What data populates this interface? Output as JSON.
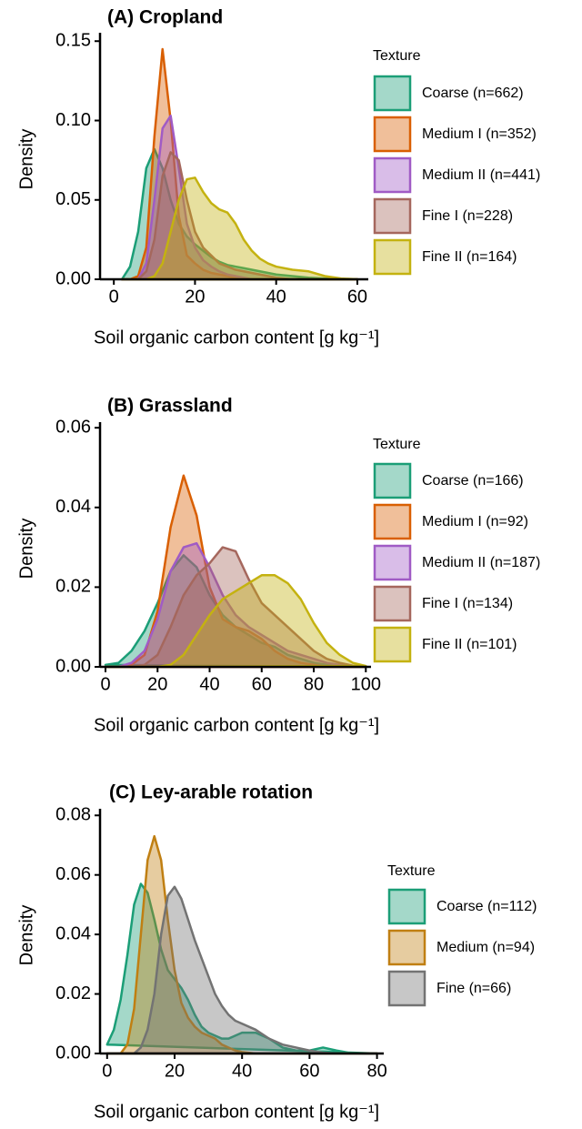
{
  "chart_data": [
    {
      "type": "density",
      "title": "(A) Cropland",
      "x_label": "Soil organic carbon content [g kg⁻¹]",
      "y_label": "Density",
      "legend_title": "Texture",
      "xlim": [
        -3.4,
        62.7
      ],
      "ylim": [
        0,
        0.153
      ],
      "xticks": [
        0,
        20,
        40,
        60
      ],
      "yticks": [
        {
          "value": 0,
          "label": "0.00"
        },
        0.05,
        {
          "value": 0.1,
          "label": "0.10"
        },
        0.15
      ],
      "x": [
        2,
        4,
        6,
        8,
        10,
        12,
        14,
        16,
        18,
        20,
        22,
        24,
        26,
        28,
        30,
        32,
        34,
        36,
        38,
        40,
        44,
        48,
        52,
        56,
        60
      ],
      "series": [
        {
          "name": "Coarse (n=662)",
          "color": "#1b9e77",
          "values": [
            0,
            0.008,
            0.03,
            0.07,
            0.082,
            0.07,
            0.05,
            0.035,
            0.027,
            0.022,
            0.018,
            0.014,
            0.011,
            0.009,
            0.008,
            0.007,
            0.006,
            0.005,
            0.004,
            0.003,
            0.002,
            0.001,
            0.0005,
            0.0002,
            0
          ]
        },
        {
          "name": "Medium I (n=352)",
          "color": "#d95f02",
          "values": [
            0,
            0,
            0.002,
            0.02,
            0.09,
            0.145,
            0.1,
            0.04,
            0.015,
            0.01,
            0.006,
            0.004,
            0.003,
            0.002,
            0.001,
            0,
            0,
            0,
            0,
            0,
            0,
            0,
            0,
            0,
            0
          ]
        },
        {
          "name": "Medium II (n=441)",
          "color": "#a05bc5",
          "values": [
            0,
            0,
            0,
            0.01,
            0.05,
            0.095,
            0.103,
            0.07,
            0.035,
            0.02,
            0.012,
            0.008,
            0.005,
            0.003,
            0.002,
            0.001,
            0,
            0,
            0,
            0,
            0,
            0,
            0,
            0,
            0
          ]
        },
        {
          "name": "Fine I (n=228)",
          "color": "#a5675d",
          "values": [
            0,
            0,
            0,
            0.005,
            0.025,
            0.065,
            0.08,
            0.075,
            0.05,
            0.03,
            0.02,
            0.015,
            0.01,
            0.008,
            0.006,
            0.005,
            0.004,
            0.003,
            0.002,
            0.001,
            0,
            0,
            0,
            0,
            0
          ]
        },
        {
          "name": "Fine II (n=164)",
          "color": "#c4b210",
          "values": [
            0,
            0,
            0,
            0,
            0.002,
            0.01,
            0.03,
            0.05,
            0.063,
            0.064,
            0.055,
            0.048,
            0.044,
            0.042,
            0.035,
            0.025,
            0.018,
            0.013,
            0.01,
            0.008,
            0.006,
            0.005,
            0.002,
            0.0005,
            0
          ]
        }
      ]
    },
    {
      "type": "density",
      "title": "(B) Grassland",
      "x_label": "Soil organic carbon content [g kg⁻¹]",
      "y_label": "Density",
      "legend_title": "Texture",
      "xlim": [
        -2.1,
        102
      ],
      "ylim": [
        0,
        0.0605
      ],
      "xticks": [
        0,
        20,
        40,
        60,
        80,
        100
      ],
      "yticks": [
        {
          "value": 0,
          "label": "0.00"
        },
        0.02,
        0.04,
        0.06
      ],
      "x": [
        0,
        5,
        10,
        15,
        20,
        25,
        30,
        35,
        40,
        45,
        50,
        55,
        60,
        65,
        70,
        75,
        80,
        85,
        90,
        95,
        100
      ],
      "series": [
        {
          "name": "Coarse (n=166)",
          "color": "#1b9e77",
          "values": [
            0.0005,
            0.001,
            0.004,
            0.009,
            0.016,
            0.024,
            0.028,
            0.025,
            0.018,
            0.013,
            0.01,
            0.008,
            0.006,
            0.005,
            0.003,
            0.002,
            0.001,
            0.0005,
            0.0002,
            0,
            0
          ]
        },
        {
          "name": "Medium I (n=92)",
          "color": "#d95f02",
          "values": [
            0,
            0,
            0.0005,
            0.003,
            0.014,
            0.035,
            0.048,
            0.038,
            0.02,
            0.012,
            0.01,
            0.009,
            0.007,
            0.004,
            0.002,
            0.001,
            0.0005,
            0,
            0,
            0,
            0
          ]
        },
        {
          "name": "Medium II (n=187)",
          "color": "#a05bc5",
          "values": [
            0,
            0,
            0.001,
            0.004,
            0.012,
            0.024,
            0.03,
            0.031,
            0.025,
            0.018,
            0.013,
            0.01,
            0.008,
            0.006,
            0.004,
            0.003,
            0.002,
            0.001,
            0.0005,
            0,
            0
          ]
        },
        {
          "name": "Fine I (n=134)",
          "color": "#a5675d",
          "values": [
            0,
            0,
            0,
            0.0005,
            0.003,
            0.01,
            0.018,
            0.023,
            0.026,
            0.03,
            0.029,
            0.022,
            0.016,
            0.013,
            0.01,
            0.007,
            0.004,
            0.002,
            0.001,
            0.0003,
            0
          ]
        },
        {
          "name": "Fine II (n=101)",
          "color": "#c4b210",
          "values": [
            0,
            0,
            0,
            0,
            0,
            0.0005,
            0.003,
            0.008,
            0.013,
            0.017,
            0.019,
            0.021,
            0.023,
            0.023,
            0.021,
            0.017,
            0.011,
            0.006,
            0.003,
            0.001,
            0.0002
          ]
        }
      ]
    },
    {
      "type": "density",
      "title": "(C) Ley-arable rotation",
      "x_label": "Soil organic carbon content [g kg⁻¹]",
      "y_label": "Density",
      "legend_title": "Texture",
      "xlim": [
        -2.1,
        82
      ],
      "ylim": [
        0,
        0.081
      ],
      "xticks": [
        0,
        20,
        40,
        60,
        80
      ],
      "yticks": [
        {
          "value": 0,
          "label": "0.00"
        },
        0.02,
        0.04,
        0.06,
        0.08
      ],
      "x": [
        0,
        2,
        4,
        6,
        8,
        10,
        12,
        14,
        16,
        18,
        20,
        22,
        24,
        26,
        28,
        30,
        32,
        34,
        36,
        38,
        40,
        44,
        48,
        52,
        56,
        60,
        64,
        68,
        72,
        76,
        80
      ],
      "series": [
        {
          "name": "Coarse (n=112)",
          "color": "#1b9e77",
          "values": [
            0.003,
            0.008,
            0.018,
            0.033,
            0.05,
            0.057,
            0.054,
            0.045,
            0.035,
            0.028,
            0.025,
            0.022,
            0.018,
            0.013,
            0.009,
            0.007,
            0.006,
            0.005,
            0.005,
            0.006,
            0.007,
            0.007,
            0.005,
            0.002,
            0.001,
            0.001,
            0.002,
            0.001,
            0.0002,
            0,
            0
          ]
        },
        {
          "name": "Medium (n=94)",
          "color": "#c07f12",
          "values": [
            0,
            0,
            0,
            0.003,
            0.015,
            0.04,
            0.065,
            0.073,
            0.065,
            0.045,
            0.028,
            0.017,
            0.012,
            0.009,
            0.007,
            0.006,
            0.005,
            0.003,
            0.002,
            0.001,
            0.0005,
            0,
            0,
            0,
            0,
            0,
            0,
            0,
            0,
            0,
            0
          ]
        },
        {
          "name": "Fine (n=66)",
          "color": "#737373",
          "values": [
            0,
            0,
            0,
            0,
            0,
            0.002,
            0.008,
            0.02,
            0.04,
            0.053,
            0.056,
            0.052,
            0.045,
            0.038,
            0.032,
            0.026,
            0.02,
            0.016,
            0.013,
            0.011,
            0.01,
            0.008,
            0.005,
            0.003,
            0.002,
            0.001,
            0.0003,
            0,
            0,
            0,
            0
          ]
        }
      ]
    }
  ]
}
